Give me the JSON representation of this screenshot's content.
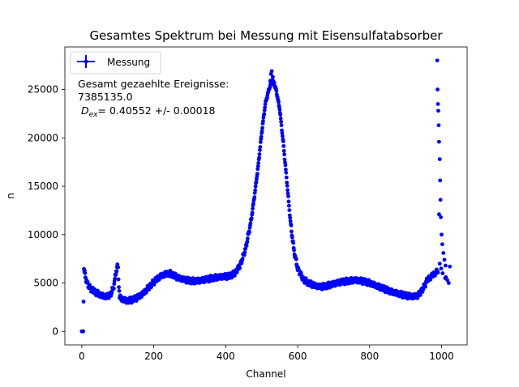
{
  "chart_data": {
    "type": "scatter",
    "title": "Gesamtes Spektrum bei Messung mit Eisensulfatabsorber",
    "xlabel": "Channel",
    "ylabel": "n",
    "xlim": [
      -47,
      1071
    ],
    "ylim": [
      -1400,
      29400
    ],
    "xticks": [
      0,
      200,
      400,
      600,
      800,
      1000
    ],
    "yticks": [
      0,
      5000,
      10000,
      15000,
      20000,
      25000
    ],
    "grid": false,
    "legend": {
      "placement": "top-left",
      "entries": [
        "Messung"
      ]
    },
    "annotation": {
      "line1": "Gesamt gezaehlte Ereignisse:",
      "line2": "7385135.0",
      "line3_symbol": "D",
      "line3_sub": "ex",
      "line3_rest": "= 0.40552 +/- 0.00018"
    },
    "series": [
      {
        "name": "Messung",
        "color": "#0000ff",
        "marker": "circle",
        "keypoints": [
          [
            0,
            0
          ],
          [
            2,
            0
          ],
          [
            4,
            0
          ],
          [
            6,
            6500
          ],
          [
            10,
            5600
          ],
          [
            15,
            5000
          ],
          [
            20,
            4600
          ],
          [
            30,
            4250
          ],
          [
            40,
            4000
          ],
          [
            50,
            3800
          ],
          [
            60,
            3650
          ],
          [
            70,
            3600
          ],
          [
            80,
            3800
          ],
          [
            88,
            4500
          ],
          [
            93,
            5600
          ],
          [
            96,
            6300
          ],
          [
            99,
            6700
          ],
          [
            101,
            6500
          ],
          [
            102,
            5500
          ],
          [
            105,
            3500
          ],
          [
            115,
            3300
          ],
          [
            125,
            3150
          ],
          [
            140,
            3250
          ],
          [
            155,
            3500
          ],
          [
            170,
            3900
          ],
          [
            185,
            4500
          ],
          [
            200,
            5100
          ],
          [
            215,
            5600
          ],
          [
            230,
            5900
          ],
          [
            245,
            6000
          ],
          [
            255,
            5800
          ],
          [
            270,
            5500
          ],
          [
            290,
            5300
          ],
          [
            310,
            5200
          ],
          [
            330,
            5250
          ],
          [
            350,
            5400
          ],
          [
            370,
            5550
          ],
          [
            390,
            5650
          ],
          [
            410,
            5700
          ],
          [
            425,
            6000
          ],
          [
            440,
            6800
          ],
          [
            455,
            8500
          ],
          [
            470,
            11300
          ],
          [
            480,
            14000
          ],
          [
            490,
            17000
          ],
          [
            500,
            20500
          ],
          [
            510,
            23500
          ],
          [
            520,
            25000
          ],
          [
            530,
            26000
          ],
          [
            540,
            25000
          ],
          [
            550,
            23000
          ],
          [
            560,
            19500
          ],
          [
            570,
            15500
          ],
          [
            580,
            11300
          ],
          [
            590,
            8300
          ],
          [
            600,
            6500
          ],
          [
            615,
            5400
          ],
          [
            630,
            5000
          ],
          [
            650,
            4700
          ],
          [
            665,
            4600
          ],
          [
            680,
            4700
          ],
          [
            700,
            4900
          ],
          [
            720,
            5100
          ],
          [
            740,
            5200
          ],
          [
            760,
            5300
          ],
          [
            780,
            5200
          ],
          [
            800,
            5000
          ],
          [
            820,
            4700
          ],
          [
            840,
            4400
          ],
          [
            860,
            4100
          ],
          [
            880,
            3900
          ],
          [
            900,
            3700
          ],
          [
            920,
            3600
          ],
          [
            935,
            3700
          ],
          [
            950,
            4500
          ],
          [
            960,
            5300
          ],
          [
            975,
            5800
          ],
          [
            985,
            6100
          ],
          [
            990,
            6300
          ]
        ],
        "extra_points": [
          [
            988,
            28000
          ],
          [
            989,
            25000
          ],
          [
            990,
            23500
          ],
          [
            991,
            22800
          ],
          [
            992,
            21300
          ],
          [
            993,
            19600
          ],
          [
            995,
            17800
          ],
          [
            996,
            15600
          ],
          [
            997,
            13600
          ],
          [
            998,
            11800
          ],
          [
            1000,
            10000
          ],
          [
            1002,
            9000
          ],
          [
            1005,
            8100
          ],
          [
            1008,
            7400
          ],
          [
            1011,
            6800
          ],
          [
            993,
            12100
          ],
          [
            995,
            7000
          ],
          [
            999,
            6500
          ],
          [
            1003,
            6000
          ],
          [
            1012,
            5600
          ],
          [
            1016,
            5300
          ],
          [
            1020,
            5000
          ],
          [
            1023,
            6700
          ],
          [
            1010,
            5500
          ]
        ]
      }
    ]
  }
}
